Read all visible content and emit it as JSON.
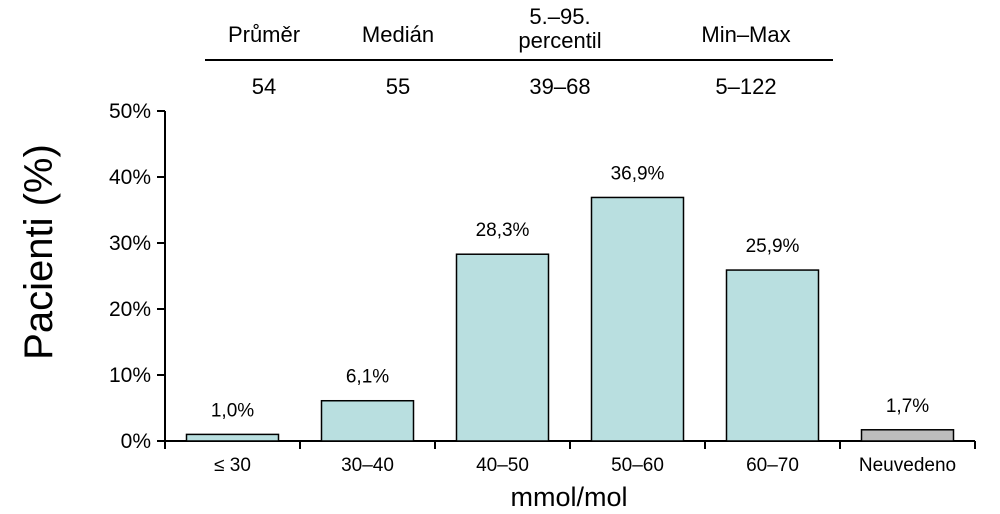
{
  "stats_table": {
    "headers": [
      {
        "lines": [
          "Průměr"
        ]
      },
      {
        "lines": [
          "Medián"
        ]
      },
      {
        "lines": [
          "5.–95.",
          "percentil"
        ]
      },
      {
        "lines": [
          "Min–Max"
        ]
      }
    ],
    "values": [
      "54",
      "55",
      "39–68",
      "5–122"
    ]
  },
  "chart_data": {
    "type": "bar",
    "categories": [
      "≤ 30",
      "30–40",
      "40–50",
      "50–60",
      "60–70",
      "Neuvedeno"
    ],
    "values": [
      1.0,
      6.1,
      28.3,
      36.9,
      25.9,
      1.7
    ],
    "data_labels": [
      "1,0%",
      "6,1%",
      "28,3%",
      "36,9%",
      "25,9%",
      "1,7%"
    ],
    "bar_colors": [
      "#b9dfe0",
      "#b9dfe0",
      "#b9dfe0",
      "#b9dfe0",
      "#b9dfe0",
      "#bdbdbd"
    ],
    "xlabel": "mmol/mol",
    "ylabel": "Pacienti (%)",
    "ylim": [
      0,
      50
    ],
    "yticks": [
      0,
      10,
      20,
      30,
      40,
      50
    ],
    "ytick_labels": [
      "0%",
      "10%",
      "20%",
      "30%",
      "40%",
      "50%"
    ],
    "grid": false
  }
}
